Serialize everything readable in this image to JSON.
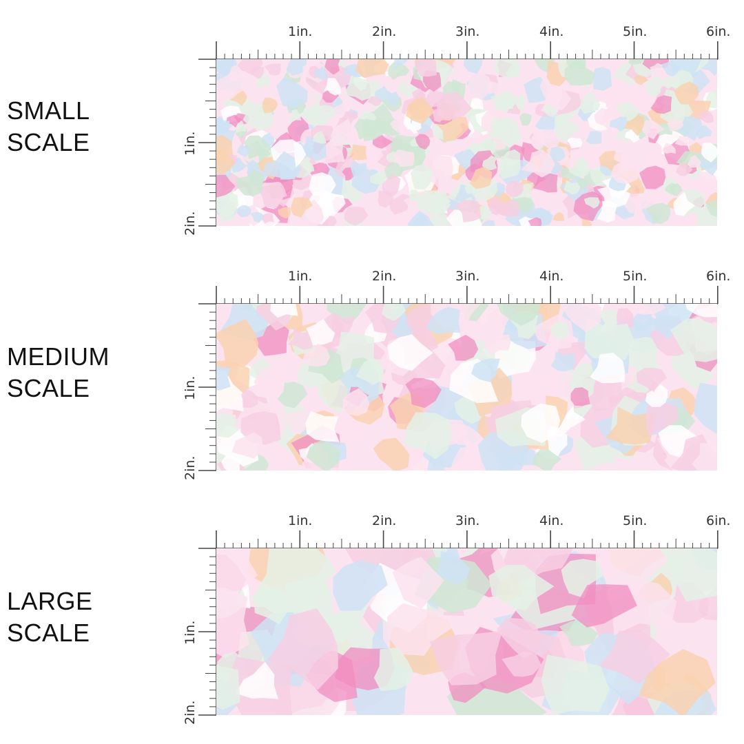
{
  "sections": [
    {
      "name": "small",
      "label_line1": "SMALL",
      "label_line2": "SCALE",
      "blot_count": 520,
      "blot_size": [
        8,
        22
      ],
      "seed": 11
    },
    {
      "name": "medium",
      "label_line1": "MEDIUM",
      "label_line2": "SCALE",
      "blot_count": 230,
      "blot_size": [
        14,
        38
      ],
      "seed": 23
    },
    {
      "name": "large",
      "label_line1": "LARGE",
      "label_line2": "SCALE",
      "blot_count": 120,
      "blot_size": [
        22,
        60
      ],
      "seed": 37
    }
  ],
  "ruler": {
    "top_labels": [
      "1in.",
      "2in.",
      "3in.",
      "4in.",
      "5in.",
      "6in."
    ],
    "side_labels": [
      "1in.",
      "2in."
    ]
  },
  "palette": {
    "pink_light": "#f7cfe3",
    "pink_pale": "#fbe3ef",
    "pink_hot": "#f08ec0",
    "blue": "#cfe3f5",
    "green": "#cfe6d3",
    "green_pale": "#e4f1e6",
    "peach": "#f9d2b2",
    "white": "#ffffff"
  }
}
